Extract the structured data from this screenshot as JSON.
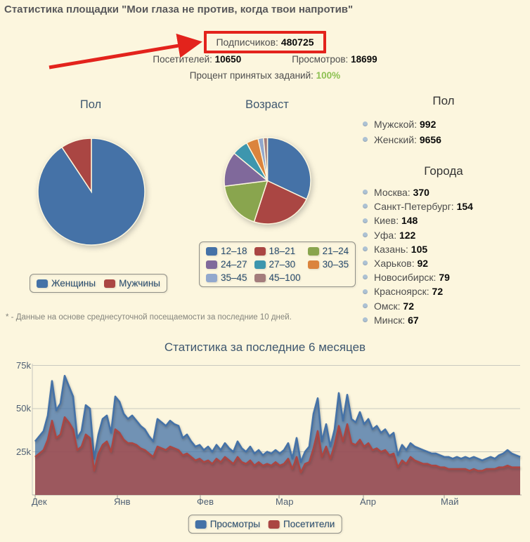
{
  "page": {
    "title": "Статистика площадки \"Мои глаза не против, когда твои напротив\""
  },
  "summary": {
    "subscribers_label": "Подписчиков:",
    "subscribers_value": "480725",
    "visitors_label": "Посетителей:",
    "visitors_value": "10650",
    "views_label": "Просмотров:",
    "views_value": "18699",
    "accepted_label": "Процент принятых заданий:",
    "accepted_value": "100%",
    "accepted_color": "#8DC152",
    "highlight_color": "#E3231C"
  },
  "gender_pie": {
    "title": "Пол",
    "slices": [
      {
        "label": "Женщины",
        "value": 9656,
        "color": "#4572A7"
      },
      {
        "label": "Мужчины",
        "value": 992,
        "color": "#AA4643"
      }
    ]
  },
  "age_pie": {
    "title": "Возраст",
    "slices": [
      {
        "label": "12–18",
        "value": 32,
        "color": "#4572A7"
      },
      {
        "label": "18–21",
        "value": 23,
        "color": "#AA4643"
      },
      {
        "label": "21–24",
        "value": 18,
        "color": "#89A54E"
      },
      {
        "label": "24–27",
        "value": 13,
        "color": "#80699B"
      },
      {
        "label": "27–30",
        "value": 6,
        "color": "#3D96AE"
      },
      {
        "label": "30–35",
        "value": 4.5,
        "color": "#DB843D"
      },
      {
        "label": "35–45",
        "value": 2,
        "color": "#92A8CD"
      },
      {
        "label": "45–100",
        "value": 1.5,
        "color": "#A47D7C"
      }
    ]
  },
  "demographics": {
    "gender_heading": "Пол",
    "gender_items": [
      {
        "label": "Мужской",
        "value": "992"
      },
      {
        "label": "Женский",
        "value": "9656"
      }
    ],
    "cities_heading": "Города",
    "city_items": [
      {
        "label": "Москва",
        "value": "370"
      },
      {
        "label": "Санкт-Петербург",
        "value": "154"
      },
      {
        "label": "Киев",
        "value": "148"
      },
      {
        "label": "Уфа",
        "value": "122"
      },
      {
        "label": "Казань",
        "value": "105"
      },
      {
        "label": "Харьков",
        "value": "92"
      },
      {
        "label": "Новосибирск",
        "value": "79"
      },
      {
        "label": "Красноярск",
        "value": "72"
      },
      {
        "label": "Омск",
        "value": "72"
      },
      {
        "label": "Минск",
        "value": "67"
      }
    ]
  },
  "footnote": "* - Данные на основе среднесуточной посещаемости за последние 10 дней.",
  "chart_data": {
    "type": "area",
    "title": "Статистика за последние 6 месяцев",
    "x_tick_labels": [
      "Дек",
      "Янв",
      "Фев",
      "Мар",
      "Апр",
      "Май"
    ],
    "y_tick_labels": [
      "25k",
      "50k",
      "75k"
    ],
    "y_tick_values_k": [
      25,
      50,
      75
    ],
    "ylim_k": [
      0,
      79
    ],
    "grid": true,
    "legend_position": "bottom",
    "values_unit": "thousands",
    "series": [
      {
        "name": "Просмотры",
        "color": "#4572A7",
        "values": [
          31,
          34,
          37,
          46,
          66,
          49,
          53,
          69,
          63,
          57,
          33,
          37,
          52,
          50,
          21,
          35,
          44,
          46,
          36,
          57,
          54,
          47,
          44,
          46,
          43,
          40,
          38,
          34,
          31,
          44,
          42,
          40,
          43,
          41,
          40,
          33,
          35,
          31,
          28,
          29,
          26,
          28,
          25,
          29,
          26,
          30,
          27,
          25,
          31,
          27,
          25,
          28,
          24,
          26,
          23,
          25,
          24,
          26,
          24,
          26,
          30,
          21,
          33,
          19,
          25,
          28,
          47,
          56,
          31,
          41,
          28,
          38,
          59,
          43,
          58,
          44,
          42,
          48,
          41,
          44,
          38,
          40,
          36,
          38,
          34,
          36,
          23,
          29,
          26,
          30,
          28,
          27,
          26,
          25,
          24,
          24,
          23,
          22,
          22,
          21,
          22,
          21,
          22,
          21,
          22,
          21,
          20,
          21,
          22,
          21,
          23,
          24,
          26,
          24,
          23,
          22
        ]
      },
      {
        "name": "Посетители",
        "color": "#AA4643",
        "values": [
          22,
          24,
          26,
          32,
          43,
          33,
          35,
          45,
          42,
          38,
          26,
          28,
          35,
          33,
          14,
          24,
          29,
          31,
          25,
          38,
          36,
          32,
          30,
          30,
          29,
          27,
          26,
          24,
          22,
          28,
          27,
          26,
          28,
          27,
          26,
          23,
          24,
          22,
          20,
          21,
          19,
          20,
          18,
          21,
          19,
          22,
          20,
          18,
          22,
          19,
          18,
          20,
          17,
          19,
          17,
          18,
          17,
          19,
          17,
          18,
          21,
          15,
          22,
          13,
          18,
          19,
          27,
          37,
          22,
          28,
          21,
          29,
          40,
          31,
          41,
          30,
          29,
          32,
          28,
          30,
          26,
          27,
          25,
          26,
          23,
          24,
          16,
          20,
          18,
          22,
          20,
          19,
          18,
          18,
          17,
          17,
          16,
          16,
          15,
          15,
          15,
          15,
          15,
          14,
          15,
          14,
          14,
          15,
          15,
          15,
          16,
          16,
          17,
          16,
          16,
          16
        ]
      }
    ]
  }
}
